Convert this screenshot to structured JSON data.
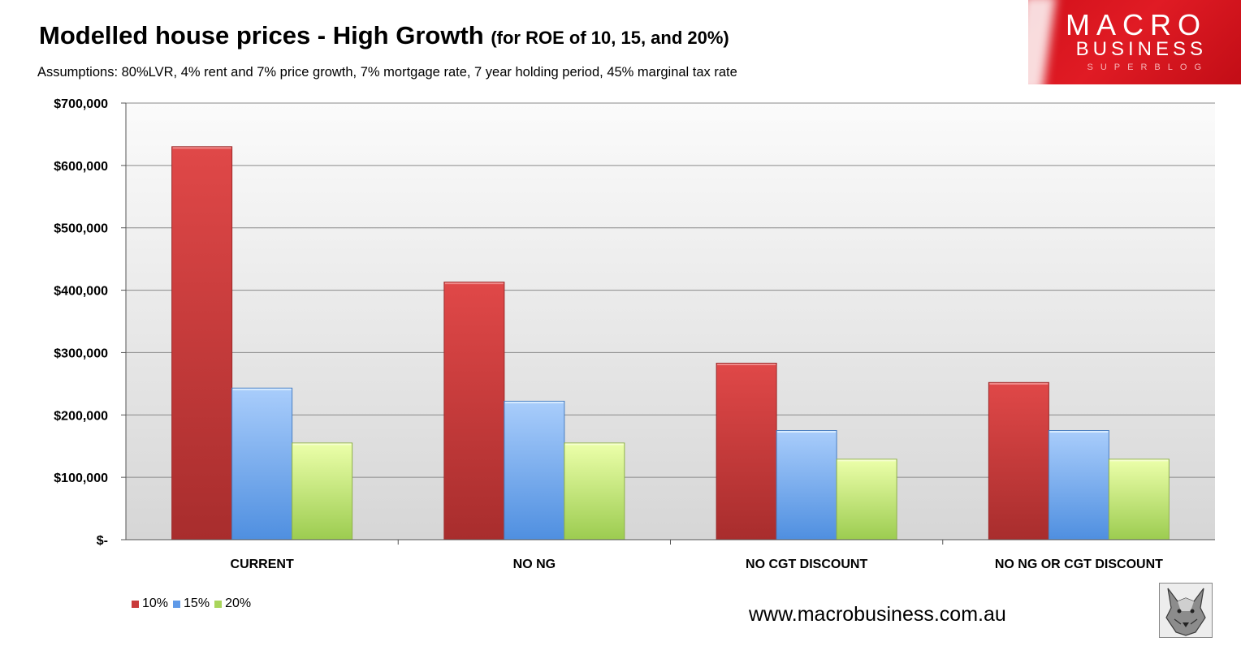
{
  "header": {
    "title": "Modelled house prices - High Growth",
    "title_suffix": "(for ROE of 10, 15, and 20%)",
    "assumptions": "Assumptions: 80%LVR, 4% rent and 7% price growth, 7% mortgage rate, 7 year holding period, 45% marginal tax rate"
  },
  "logo": {
    "line1": "MACRO",
    "line2": "BUSINESS",
    "line3": "SUPERBLOG"
  },
  "footer": {
    "url": "www.macrobusiness.com.au"
  },
  "colors": {
    "s10": "#d63b3b",
    "s15": "#6fa8ee",
    "s20": "#b6df6a"
  },
  "icons": {
    "mascot": "wolf-head-icon"
  },
  "chart_data": {
    "type": "bar",
    "title": "Modelled house prices - High Growth (for ROE of 10, 15, and 20%)",
    "categories": [
      "CURRENT",
      "NO NG",
      "NO CGT DISCOUNT",
      "NO NG OR CGT DISCOUNT"
    ],
    "series": [
      {
        "name": "10%",
        "values": [
          630000,
          413000,
          283000,
          252000
        ]
      },
      {
        "name": "15%",
        "values": [
          243000,
          222000,
          175000,
          175000
        ]
      },
      {
        "name": "20%",
        "values": [
          155000,
          155000,
          129000,
          129000
        ]
      }
    ],
    "ylim": [
      0,
      700000
    ],
    "yticks": [
      0,
      100000,
      200000,
      300000,
      400000,
      500000,
      600000,
      700000
    ],
    "ytick_labels": [
      "$-",
      "$100,000",
      "$200,000",
      "$300,000",
      "$400,000",
      "$500,000",
      "$600,000",
      "$700,000"
    ],
    "grid": true,
    "legend": "bottom-left"
  }
}
